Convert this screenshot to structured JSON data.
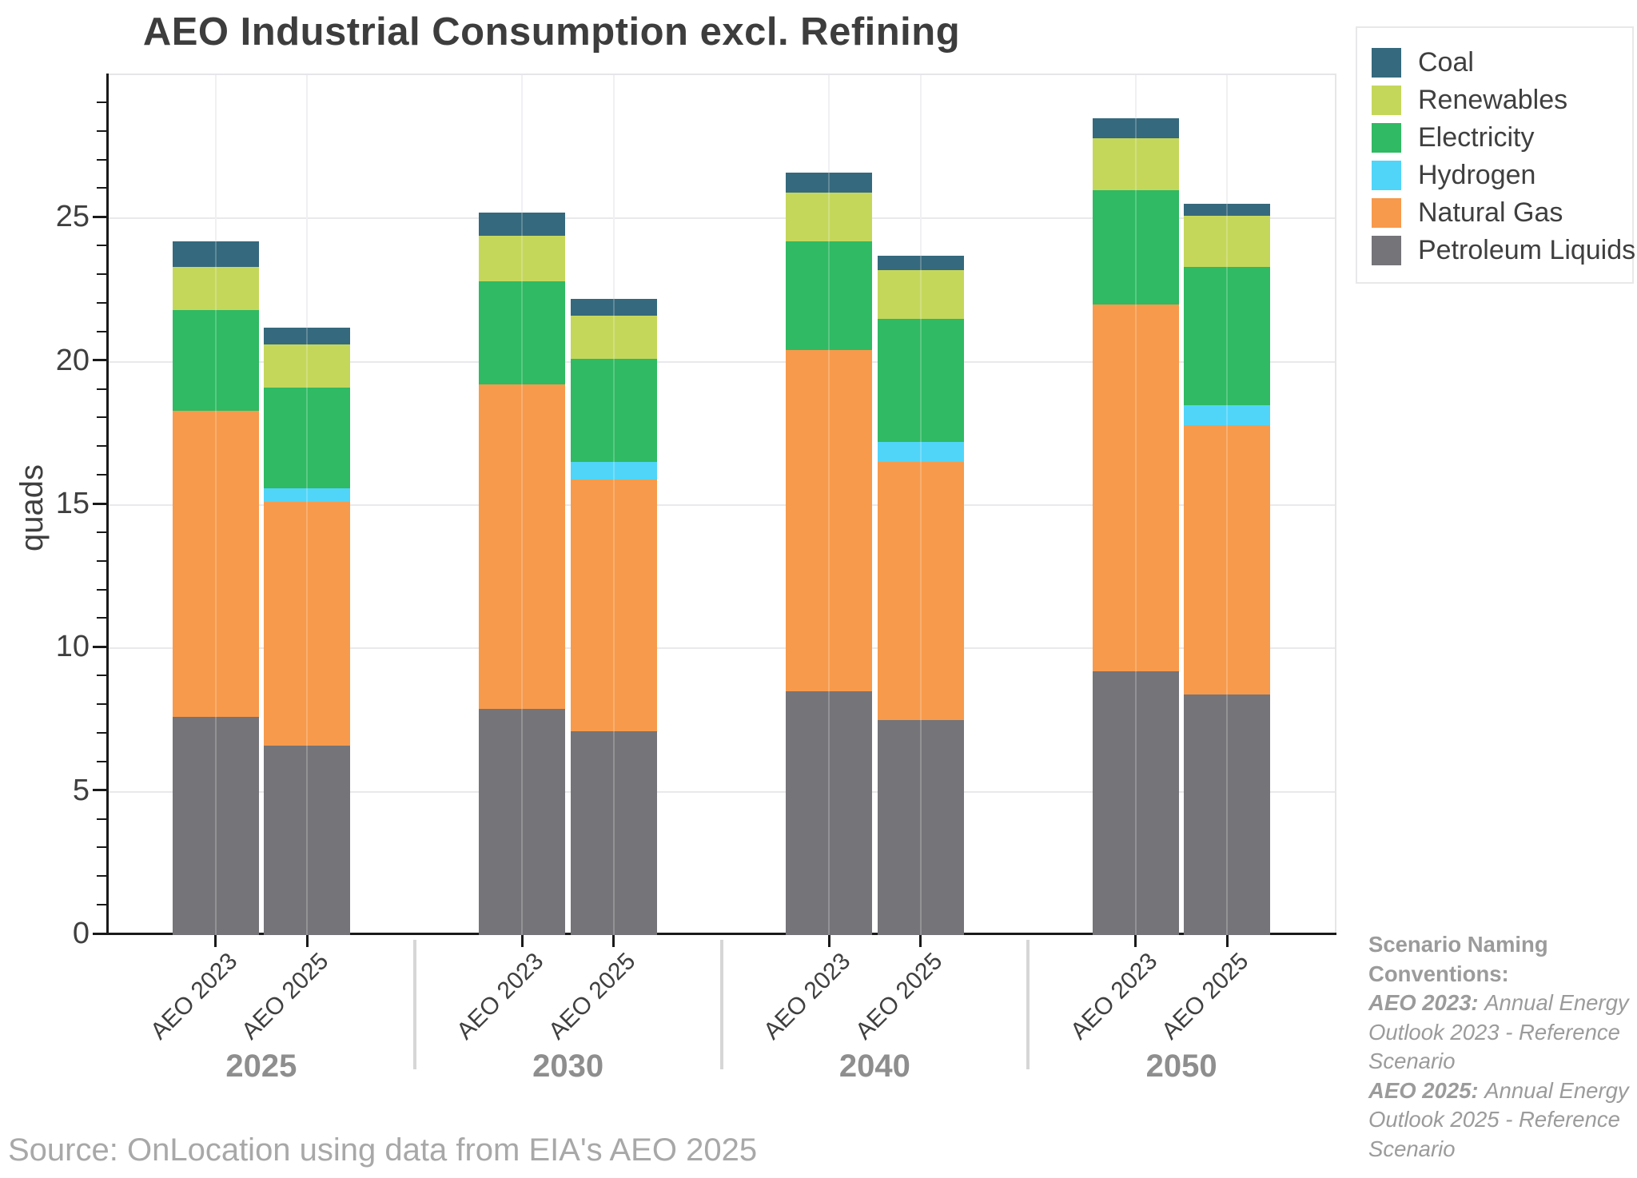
{
  "title": "AEO Industrial Consumption excl. Refining",
  "source": "Source: OnLocation using data from EIA's AEO 2025",
  "annotation": {
    "heading": "Scenario Naming Conventions:",
    "items": [
      {
        "term": "AEO 2023:",
        "definition": "Annual Energy Outlook 2023 - Reference Scenario"
      },
      {
        "term": "AEO 2025:",
        "definition": "Annual Energy Outlook 2025 - Reference Scenario"
      }
    ]
  },
  "legend": [
    {
      "label": "Coal",
      "color": "#35697d"
    },
    {
      "label": "Renewables",
      "color": "#c5d75b"
    },
    {
      "label": "Electricity",
      "color": "#2fba63"
    },
    {
      "label": "Hydrogen",
      "color": "#50d5f9"
    },
    {
      "label": "Natural Gas",
      "color": "#f79a4b"
    },
    {
      "label": "Petroleum Liquids",
      "color": "#757478"
    }
  ],
  "chart_data": {
    "type": "bar",
    "stacked": true,
    "title": "AEO Industrial Consumption excl. Refining",
    "ylabel": "quads",
    "ylim": [
      0,
      30
    ],
    "yticks": [
      0,
      5,
      10,
      15,
      20,
      25
    ],
    "grid": true,
    "legend_position": "top-right",
    "groups": [
      "2025",
      "2030",
      "2040",
      "2050"
    ],
    "categories": [
      "AEO 2023",
      "AEO 2025",
      "AEO 2023",
      "AEO 2025",
      "AEO 2023",
      "AEO 2025",
      "AEO 2023",
      "AEO 2025"
    ],
    "series": [
      {
        "name": "Petroleum Liquids",
        "color": "#757478",
        "values": [
          7.6,
          6.6,
          7.9,
          7.1,
          8.5,
          7.5,
          9.2,
          8.4
        ]
      },
      {
        "name": "Natural Gas",
        "color": "#f79a4b",
        "values": [
          10.7,
          8.5,
          11.3,
          8.8,
          11.9,
          9.0,
          12.8,
          9.4
        ]
      },
      {
        "name": "Hydrogen",
        "color": "#50d5f9",
        "values": [
          0,
          0.5,
          0,
          0.6,
          0,
          0.7,
          0,
          0.7
        ]
      },
      {
        "name": "Electricity",
        "color": "#2fba63",
        "values": [
          3.5,
          3.5,
          3.6,
          3.6,
          3.8,
          4.3,
          4.0,
          4.8
        ]
      },
      {
        "name": "Renewables",
        "color": "#c5d75b",
        "values": [
          1.5,
          1.5,
          1.6,
          1.5,
          1.7,
          1.7,
          1.8,
          1.8
        ]
      },
      {
        "name": "Coal",
        "color": "#35697d",
        "values": [
          0.9,
          0.6,
          0.8,
          0.6,
          0.7,
          0.5,
          0.7,
          0.4
        ]
      }
    ],
    "bar_totals": [
      24.2,
      21.2,
      25.2,
      22.2,
      26.6,
      23.7,
      28.5,
      25.5
    ]
  }
}
